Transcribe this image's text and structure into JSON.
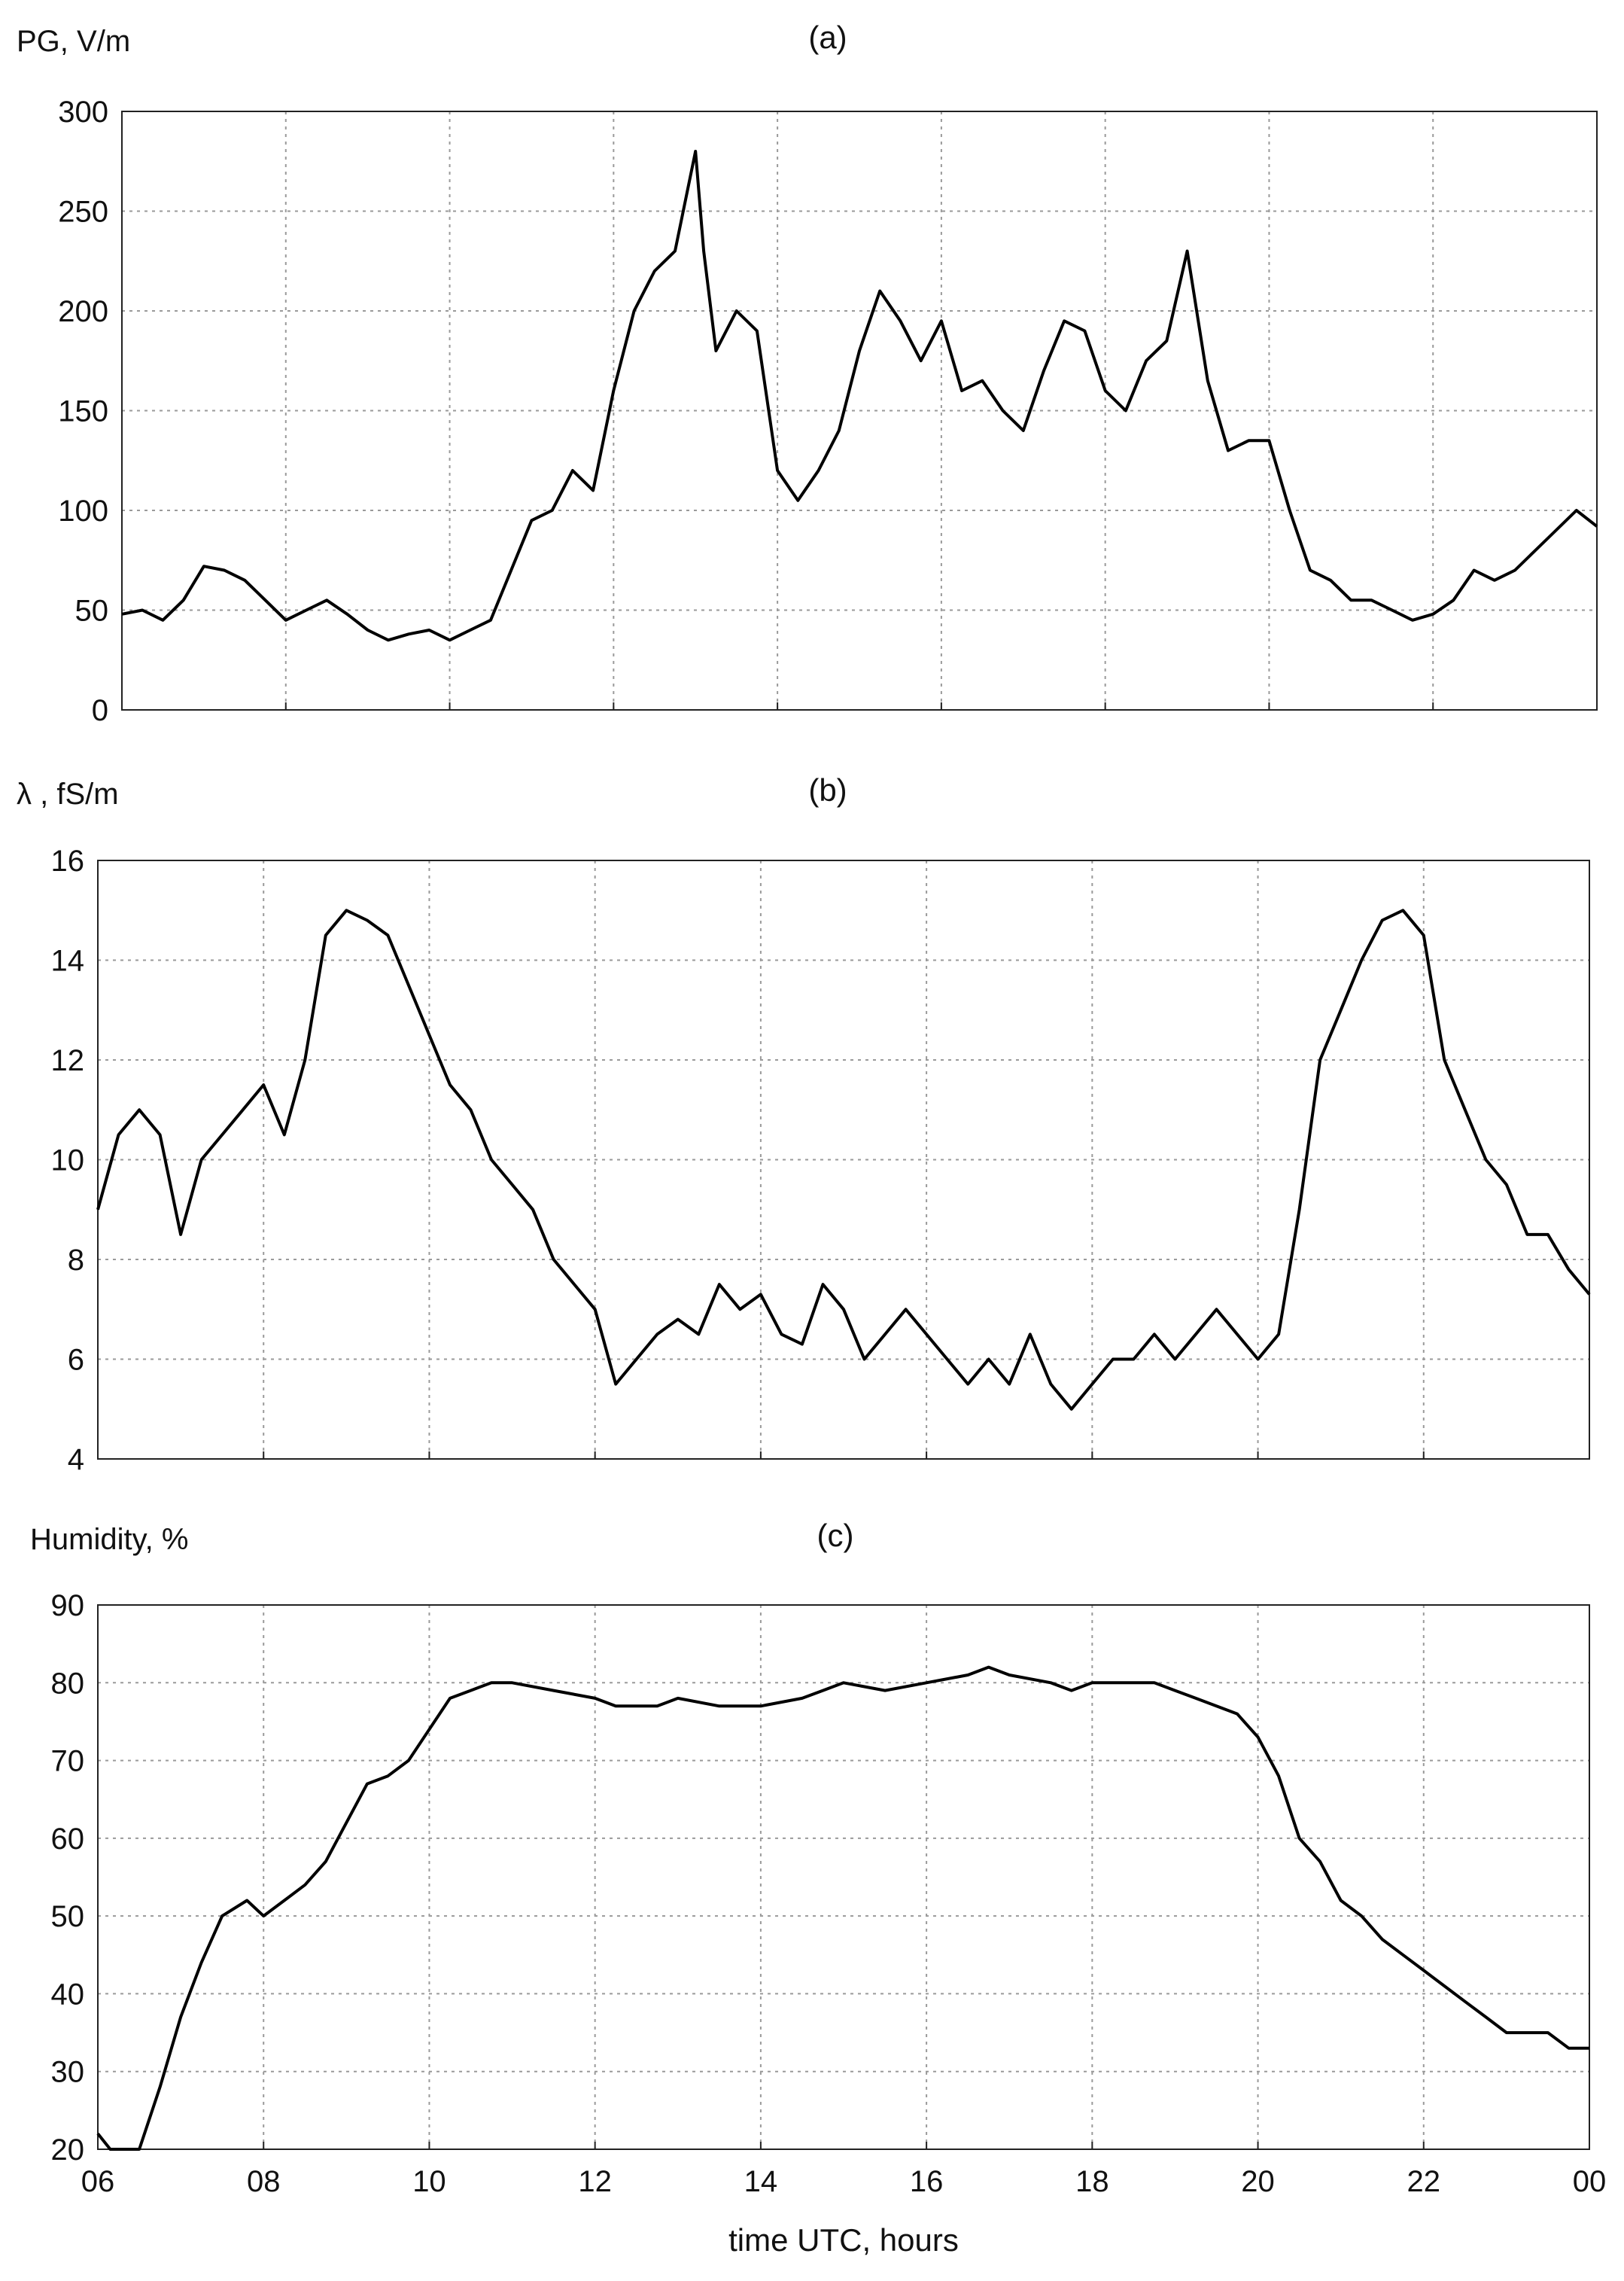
{
  "chart_data": [
    {
      "type": "line",
      "panel_label": "(a)",
      "ylabel": "PG, V/m",
      "ylim": [
        0,
        300
      ],
      "yticks": [
        0,
        50,
        100,
        150,
        200,
        250,
        300
      ],
      "xlim": [
        6,
        24
      ],
      "xtick_hours": [
        6,
        8,
        10,
        12,
        14,
        16,
        18,
        20,
        22,
        24
      ],
      "xtick_labels": [],
      "grid": true,
      "series": [
        {
          "x": [
            6.0,
            6.25,
            6.5,
            6.75,
            7.0,
            7.25,
            7.5,
            7.75,
            8.0,
            8.25,
            8.5,
            8.75,
            9.0,
            9.25,
            9.5,
            9.75,
            10.0,
            10.25,
            10.5,
            10.75,
            11.0,
            11.25,
            11.5,
            11.75,
            12.0,
            12.25,
            12.5,
            12.75,
            13.0,
            13.1,
            13.25,
            13.5,
            13.75,
            14.0,
            14.25,
            14.5,
            14.75,
            15.0,
            15.25,
            15.5,
            15.75,
            16.0,
            16.25,
            16.5,
            16.75,
            17.0,
            17.25,
            17.5,
            17.75,
            18.0,
            18.25,
            18.5,
            18.75,
            19.0,
            19.25,
            19.5,
            19.75,
            20.0,
            20.25,
            20.5,
            20.75,
            21.0,
            21.25,
            21.5,
            21.75,
            22.0,
            22.25,
            22.5,
            22.75,
            23.0,
            23.25,
            23.5,
            23.75,
            24.0
          ],
          "y": [
            48,
            50,
            45,
            55,
            72,
            70,
            65,
            55,
            45,
            50,
            55,
            48,
            40,
            35,
            38,
            40,
            35,
            40,
            45,
            70,
            95,
            100,
            120,
            110,
            160,
            200,
            220,
            230,
            280,
            230,
            180,
            200,
            190,
            120,
            105,
            120,
            140,
            180,
            210,
            195,
            175,
            195,
            160,
            165,
            150,
            140,
            170,
            195,
            190,
            160,
            150,
            175,
            185,
            230,
            165,
            130,
            135,
            135,
            100,
            70,
            65,
            55,
            55,
            50,
            45,
            48,
            55,
            70,
            65,
            70,
            80,
            90,
            100,
            92
          ]
        }
      ]
    },
    {
      "type": "line",
      "panel_label": "(b)",
      "ylabel": "λ , fS/m",
      "ylim": [
        4,
        16
      ],
      "yticks": [
        4,
        6,
        8,
        10,
        12,
        14,
        16
      ],
      "xlim": [
        6,
        24
      ],
      "xtick_hours": [
        6,
        8,
        10,
        12,
        14,
        16,
        18,
        20,
        22,
        24
      ],
      "xtick_labels": [],
      "grid": true,
      "series": [
        {
          "x": [
            6.0,
            6.25,
            6.5,
            6.75,
            7.0,
            7.25,
            7.5,
            7.75,
            8.0,
            8.25,
            8.5,
            8.75,
            9.0,
            9.25,
            9.5,
            9.75,
            10.0,
            10.25,
            10.5,
            10.75,
            11.0,
            11.25,
            11.5,
            11.75,
            12.0,
            12.25,
            12.5,
            12.75,
            13.0,
            13.25,
            13.5,
            13.75,
            14.0,
            14.25,
            14.5,
            14.75,
            15.0,
            15.25,
            15.5,
            15.75,
            16.0,
            16.25,
            16.5,
            16.75,
            17.0,
            17.25,
            17.5,
            17.75,
            18.0,
            18.25,
            18.5,
            18.75,
            19.0,
            19.25,
            19.5,
            19.75,
            20.0,
            20.25,
            20.5,
            20.75,
            21.0,
            21.25,
            21.5,
            21.75,
            22.0,
            22.25,
            22.5,
            22.75,
            23.0,
            23.25,
            23.5,
            23.75,
            24.0
          ],
          "y": [
            9.0,
            10.5,
            11.0,
            10.5,
            8.5,
            10.0,
            10.5,
            11.0,
            11.5,
            10.5,
            12.0,
            14.5,
            15.0,
            14.8,
            14.5,
            13.5,
            12.5,
            11.5,
            11.0,
            10.0,
            9.5,
            9.0,
            8.0,
            7.5,
            7.0,
            5.5,
            6.0,
            6.5,
            6.8,
            6.5,
            7.5,
            7.0,
            7.3,
            6.5,
            6.3,
            7.5,
            7.0,
            6.0,
            6.5,
            7.0,
            6.5,
            6.0,
            5.5,
            6.0,
            5.5,
            6.5,
            5.5,
            5.0,
            5.5,
            6.0,
            6.0,
            6.5,
            6.0,
            6.5,
            7.0,
            6.5,
            6.0,
            6.5,
            9.0,
            12.0,
            13.0,
            14.0,
            14.8,
            15.0,
            14.5,
            12.0,
            11.0,
            10.0,
            9.5,
            8.5,
            8.5,
            7.8,
            7.3
          ]
        }
      ]
    },
    {
      "type": "line",
      "panel_label": "(c)",
      "ylabel": "Humidity, %",
      "xlabel": "time UTC, hours",
      "ylim": [
        20,
        90
      ],
      "yticks": [
        20,
        30,
        40,
        50,
        60,
        70,
        80,
        90
      ],
      "xlim": [
        6,
        24
      ],
      "xtick_hours": [
        6,
        8,
        10,
        12,
        14,
        16,
        18,
        20,
        22,
        24
      ],
      "xtick_labels": [
        "06",
        "08",
        "10",
        "12",
        "14",
        "16",
        "18",
        "20",
        "22",
        "00"
      ],
      "grid": true,
      "series": [
        {
          "x": [
            6.0,
            6.15,
            6.5,
            6.75,
            7.0,
            7.25,
            7.5,
            7.8,
            8.0,
            8.25,
            8.5,
            8.75,
            9.0,
            9.25,
            9.5,
            9.75,
            10.0,
            10.25,
            10.5,
            10.75,
            11.0,
            11.5,
            12.0,
            12.25,
            12.5,
            12.75,
            13.0,
            13.5,
            14.0,
            14.5,
            14.75,
            15.0,
            15.5,
            16.0,
            16.5,
            16.75,
            17.0,
            17.5,
            17.75,
            18.0,
            18.5,
            18.75,
            19.0,
            19.25,
            19.5,
            19.75,
            20.0,
            20.25,
            20.5,
            20.75,
            21.0,
            21.25,
            21.5,
            21.75,
            22.0,
            22.25,
            22.5,
            22.75,
            23.0,
            23.5,
            23.75,
            24.0
          ],
          "y": [
            22,
            20,
            20,
            28,
            37,
            44,
            50,
            52,
            50,
            52,
            54,
            57,
            62,
            67,
            68,
            70,
            74,
            78,
            79,
            80,
            80,
            79,
            78,
            77,
            77,
            77,
            78,
            77,
            77,
            78,
            79,
            80,
            79,
            80,
            81,
            82,
            81,
            80,
            79,
            80,
            80,
            80,
            79,
            78,
            77,
            76,
            73,
            68,
            60,
            57,
            52,
            50,
            47,
            45,
            43,
            41,
            39,
            37,
            35,
            35,
            33,
            33
          ]
        }
      ]
    }
  ]
}
